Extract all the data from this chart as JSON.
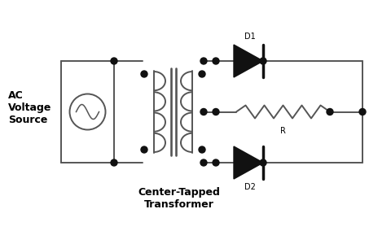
{
  "bg_color": "#ffffff",
  "line_color": "#555555",
  "dot_color": "#111111",
  "title_text": "Center-Tapped\nTransformer",
  "label_ac": "AC\nVoltage\nSource",
  "label_d1": "D1",
  "label_d2": "D2",
  "label_r": "R",
  "figsize": [
    4.8,
    3.0
  ],
  "dpi": 100
}
